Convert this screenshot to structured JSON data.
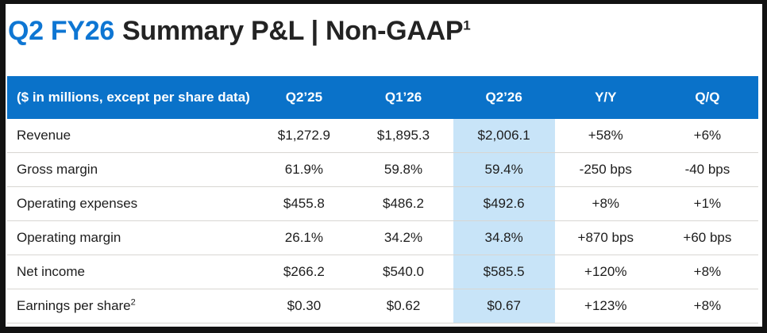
{
  "title": {
    "highlight": "Q2 FY26",
    "rest": "Summary P&L | Non-GAAP",
    "superscript": "1"
  },
  "colors": {
    "title_blue": "#0e76d3",
    "header_blue": "#0a72c9",
    "highlight_column_blue": "#c8e4f8",
    "row_divider": "#d8d6d2",
    "frame_black": "#121212",
    "body_text": "#1d1d1d"
  },
  "table": {
    "columns": [
      "($ in millions, except per share data)",
      "Q2’25",
      "Q1’26",
      "Q2’26",
      "Y/Y",
      "Q/Q"
    ],
    "highlighted_column": "Q2’26",
    "rows": [
      {
        "label": "Revenue",
        "values": [
          "$1,272.9",
          "$1,895.3",
          "$2,006.1",
          "+58%",
          "+6%"
        ]
      },
      {
        "label": "Gross margin",
        "values": [
          "61.9%",
          "59.8%",
          "59.4%",
          "-250 bps",
          "-40 bps"
        ]
      },
      {
        "label": "Operating expenses",
        "values": [
          "$455.8",
          "$486.2",
          "$492.6",
          "+8%",
          "+1%"
        ]
      },
      {
        "label": "Operating margin",
        "values": [
          "26.1%",
          "34.2%",
          "34.8%",
          "+870 bps",
          "+60 bps"
        ]
      },
      {
        "label": "Net income",
        "values": [
          "$266.2",
          "$540.0",
          "$585.5",
          "+120%",
          "+8%"
        ]
      },
      {
        "label": "Earnings per share",
        "label_sup": "2",
        "values": [
          "$0.30",
          "$0.62",
          "$0.67",
          "+123%",
          "+8%"
        ]
      }
    ]
  }
}
